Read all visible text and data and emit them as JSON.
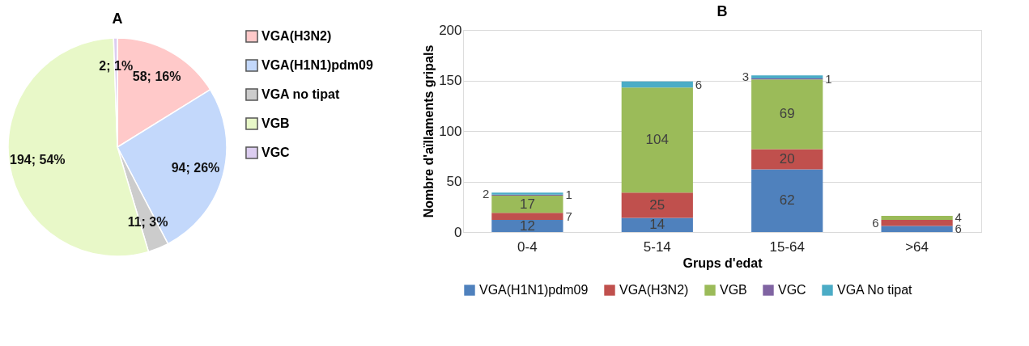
{
  "chart_data": [
    {
      "type": "pie",
      "title": "A",
      "categories": [
        "VGA(H3N2)",
        "VGA(H1N1)pdm09",
        "VGA no tipat",
        "VGB",
        "VGC"
      ],
      "values": [
        58,
        94,
        11,
        194,
        2
      ],
      "colors": [
        "#ffc9c9",
        "#c3d8fb",
        "#cccccc",
        "#e8f8c8",
        "#dccdf0"
      ],
      "value_labels": [
        "58; 16%",
        "94; 26%",
        "11; 3%",
        "194; 54%",
        "2; 1%"
      ],
      "legend": "right"
    },
    {
      "type": "bar",
      "title": "B",
      "stacked": true,
      "categories": [
        "0-4",
        "5-14",
        "15-64",
        ">64"
      ],
      "xlabel": "Grups d'edat",
      "ylabel": "Nombre d'aïllaments gripals",
      "ylim": [
        0,
        200
      ],
      "yticks": [
        0,
        50,
        100,
        150,
        200
      ],
      "grid": "y",
      "legend": "bottom",
      "data_labels": true,
      "series": [
        {
          "name": "VGA(H1N1)pdm09",
          "color": "#4f81bd",
          "values": [
            12,
            14,
            62,
            6
          ]
        },
        {
          "name": "VGA(H3N2)",
          "color": "#c0504d",
          "values": [
            7,
            25,
            20,
            6
          ]
        },
        {
          "name": "VGB",
          "color": "#9bbb59",
          "values": [
            17,
            104,
            69,
            4
          ]
        },
        {
          "name": "VGC",
          "color": "#8064a2",
          "values": [
            1,
            null,
            1,
            null
          ]
        },
        {
          "name": "VGA No tipat",
          "color": "#4bacc6",
          "values": [
            2,
            6,
            3,
            null
          ]
        }
      ]
    }
  ]
}
